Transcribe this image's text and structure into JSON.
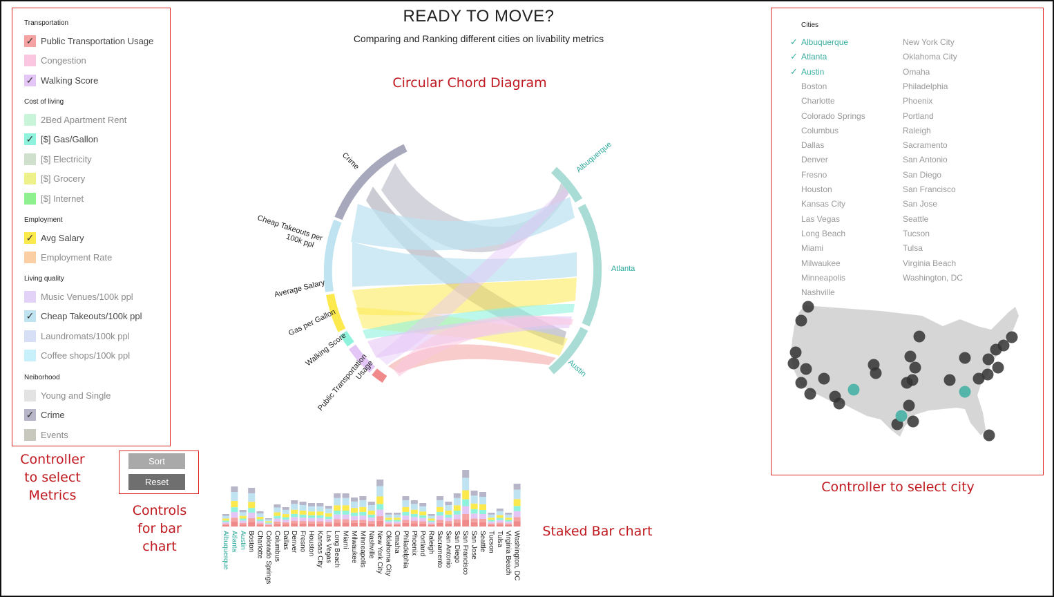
{
  "header": {
    "title": "READY TO MOVE?",
    "subtitle": "Comparing and Ranking different cities on livability metrics"
  },
  "annotations": {
    "chord": "Circular Chord Diagram",
    "metrics_ctrl": [
      "Controller",
      "to select",
      "Metrics"
    ],
    "bar_ctrl": [
      "Controls",
      "for bar",
      "chart"
    ],
    "stacked": "Staked Bar chart",
    "city_ctrl": "Controller to select city"
  },
  "metrics_panel": {
    "groups": [
      {
        "title": "Transportation",
        "items": [
          {
            "label": "Public Transportation Usage",
            "color": "#f4a2a2",
            "checked": true
          },
          {
            "label": "Congestion",
            "color": "#fbc7e0",
            "checked": false
          },
          {
            "label": "Walking Score",
            "color": "#e4c6f6",
            "checked": true
          }
        ]
      },
      {
        "title": "Cost of living",
        "items": [
          {
            "label": "2Bed Apartment Rent",
            "color": "#c8f5da",
            "checked": false
          },
          {
            "label": "[$] Gas/Gallon",
            "color": "#8ef2dc",
            "checked": true
          },
          {
            "label": "[$] Electricity",
            "color": "#cfe0cc",
            "checked": false
          },
          {
            "label": "[$] Grocery",
            "color": "#eef08a",
            "checked": false
          },
          {
            "label": "[$] Internet",
            "color": "#8ef08e",
            "checked": false
          }
        ]
      },
      {
        "title": "Employment",
        "items": [
          {
            "label": "Avg Salary",
            "color": "#fbe94e",
            "checked": true
          },
          {
            "label": "Employment Rate",
            "color": "#fbcfa3",
            "checked": false
          }
        ]
      },
      {
        "title": "Living quality",
        "items": [
          {
            "label": "Music Venues/100k ppl",
            "color": "#e3d2f8",
            "checked": false
          },
          {
            "label": "Cheap Takeouts/100k ppl",
            "color": "#bfe3f1",
            "checked": true
          },
          {
            "label": "Laundromats/100k ppl",
            "color": "#d6dff6",
            "checked": false
          },
          {
            "label": "Coffee shops/100k ppl",
            "color": "#c7f0fb",
            "checked": false
          }
        ]
      },
      {
        "title": "Neiborhood",
        "items": [
          {
            "label": "Young and Single",
            "color": "#e3e3e3",
            "checked": false
          },
          {
            "label": "Crime",
            "color": "#b6b6c8",
            "checked": true
          },
          {
            "label": "Events",
            "color": "#c8c8bf",
            "checked": false
          }
        ]
      }
    ]
  },
  "bar_controls": {
    "sort_label": "Sort",
    "reset_label": "Reset"
  },
  "chord": {
    "metric_labels": [
      "Crime",
      "Cheap Takeouts per 100k ppl",
      "Average Salary",
      "Gas per Gallon",
      "Walking Score",
      "Public Transportation Usage"
    ],
    "city_labels": [
      "Albuquerque",
      "Atlanta",
      "Austin"
    ]
  },
  "cities_panel": {
    "title": "Cities",
    "col1": [
      {
        "name": "Albuquerque",
        "selected": true
      },
      {
        "name": "Atlanta",
        "selected": true
      },
      {
        "name": "Austin",
        "selected": true
      },
      {
        "name": "Boston",
        "selected": false
      },
      {
        "name": "Charlotte",
        "selected": false
      },
      {
        "name": "Colorado Springs",
        "selected": false
      },
      {
        "name": "Columbus",
        "selected": false
      },
      {
        "name": "Dallas",
        "selected": false
      },
      {
        "name": "Denver",
        "selected": false
      },
      {
        "name": "Fresno",
        "selected": false
      },
      {
        "name": "Houston",
        "selected": false
      },
      {
        "name": "Kansas City",
        "selected": false
      },
      {
        "name": "Las Vegas",
        "selected": false
      },
      {
        "name": "Long Beach",
        "selected": false
      },
      {
        "name": "Miami",
        "selected": false
      },
      {
        "name": "Milwaukee",
        "selected": false
      },
      {
        "name": "Minneapolis",
        "selected": false
      },
      {
        "name": "Nashville",
        "selected": false
      }
    ],
    "col2": [
      {
        "name": "New York City",
        "selected": false
      },
      {
        "name": "Oklahoma City",
        "selected": false
      },
      {
        "name": "Omaha",
        "selected": false
      },
      {
        "name": "Philadelphia",
        "selected": false
      },
      {
        "name": "Phoenix",
        "selected": false
      },
      {
        "name": "Portland",
        "selected": false
      },
      {
        "name": "Raleigh",
        "selected": false
      },
      {
        "name": "Sacramento",
        "selected": false
      },
      {
        "name": "San Antonio",
        "selected": false
      },
      {
        "name": "San Diego",
        "selected": false
      },
      {
        "name": "San Francisco",
        "selected": false
      },
      {
        "name": "San Jose",
        "selected": false
      },
      {
        "name": "Seattle",
        "selected": false
      },
      {
        "name": "Tucson",
        "selected": false
      },
      {
        "name": "Tulsa",
        "selected": false
      },
      {
        "name": "Virginia Beach",
        "selected": false
      },
      {
        "name": "Washington, DC",
        "selected": false
      }
    ]
  },
  "bar_chart": {
    "cities": [
      "Albuquerque",
      "Atlanta",
      "Austin",
      "Boston",
      "Charlotte",
      "Colorado Springs",
      "Columbus",
      "Dallas",
      "Denver",
      "Fresno",
      "Houston",
      "Kansas City",
      "Las Vegas",
      "Long Beach",
      "Miami",
      "Milwaukee",
      "Minneapolis",
      "Nashville",
      "New York City",
      "Oklahoma City",
      "Omaha",
      "Philadelphia",
      "Phoenix",
      "Portland",
      "Raleigh",
      "Sacramento",
      "San Antonio",
      "San Diego",
      "San Francisco",
      "San Jose",
      "Seattle",
      "Tucson",
      "Tulsa",
      "Virginia Beach",
      "Washington, DC"
    ],
    "highlighted": [
      "Albuquerque",
      "Atlanta",
      "Austin"
    ],
    "colors": {
      "transport": "#f4a2a2",
      "walk": "#e4c6f6",
      "gas": "#8ef2dc",
      "salary": "#fbe94e",
      "takeout": "#bfe3f1",
      "crime": "#b6b6c8",
      "bottom": "#f08a8a"
    }
  },
  "map": {
    "highlight_color": "#4fb3a8",
    "dot_color": "#333333",
    "land_color": "#d6d6d6"
  }
}
